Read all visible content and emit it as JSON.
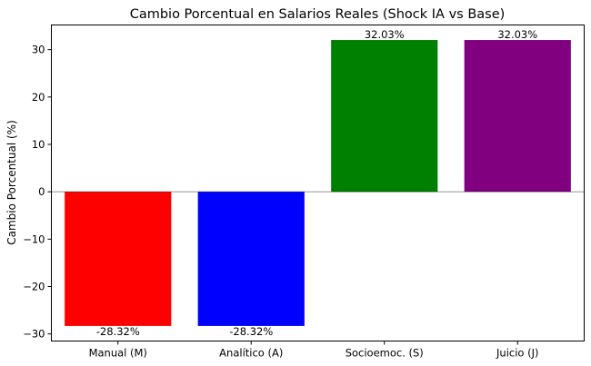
{
  "chart_data": {
    "type": "bar",
    "title": "Cambio Porcentual en Salarios Reales (Shock IA vs Base)",
    "xlabel": "",
    "ylabel": "Cambio Porcentual (%)",
    "categories": [
      "Manual (M)",
      "Analítico (A)",
      "Socioemoc. (S)",
      "Juicio (J)"
    ],
    "values": [
      -28.32,
      -28.32,
      32.03,
      32.03
    ],
    "value_labels": [
      "-28.32%",
      "-28.32%",
      "32.03%",
      "32.03%"
    ],
    "colors": [
      "#ff0000",
      "#0000ff",
      "#008000",
      "#800080"
    ],
    "yticks": [
      -30,
      -20,
      -10,
      0,
      10,
      20,
      30
    ],
    "ytick_labels": [
      "−30",
      "−20",
      "−10",
      "0",
      "10",
      "20",
      "30"
    ],
    "ylim": [
      -31.5,
      35.2
    ],
    "zero_line": true,
    "grid": false,
    "legend": false
  }
}
